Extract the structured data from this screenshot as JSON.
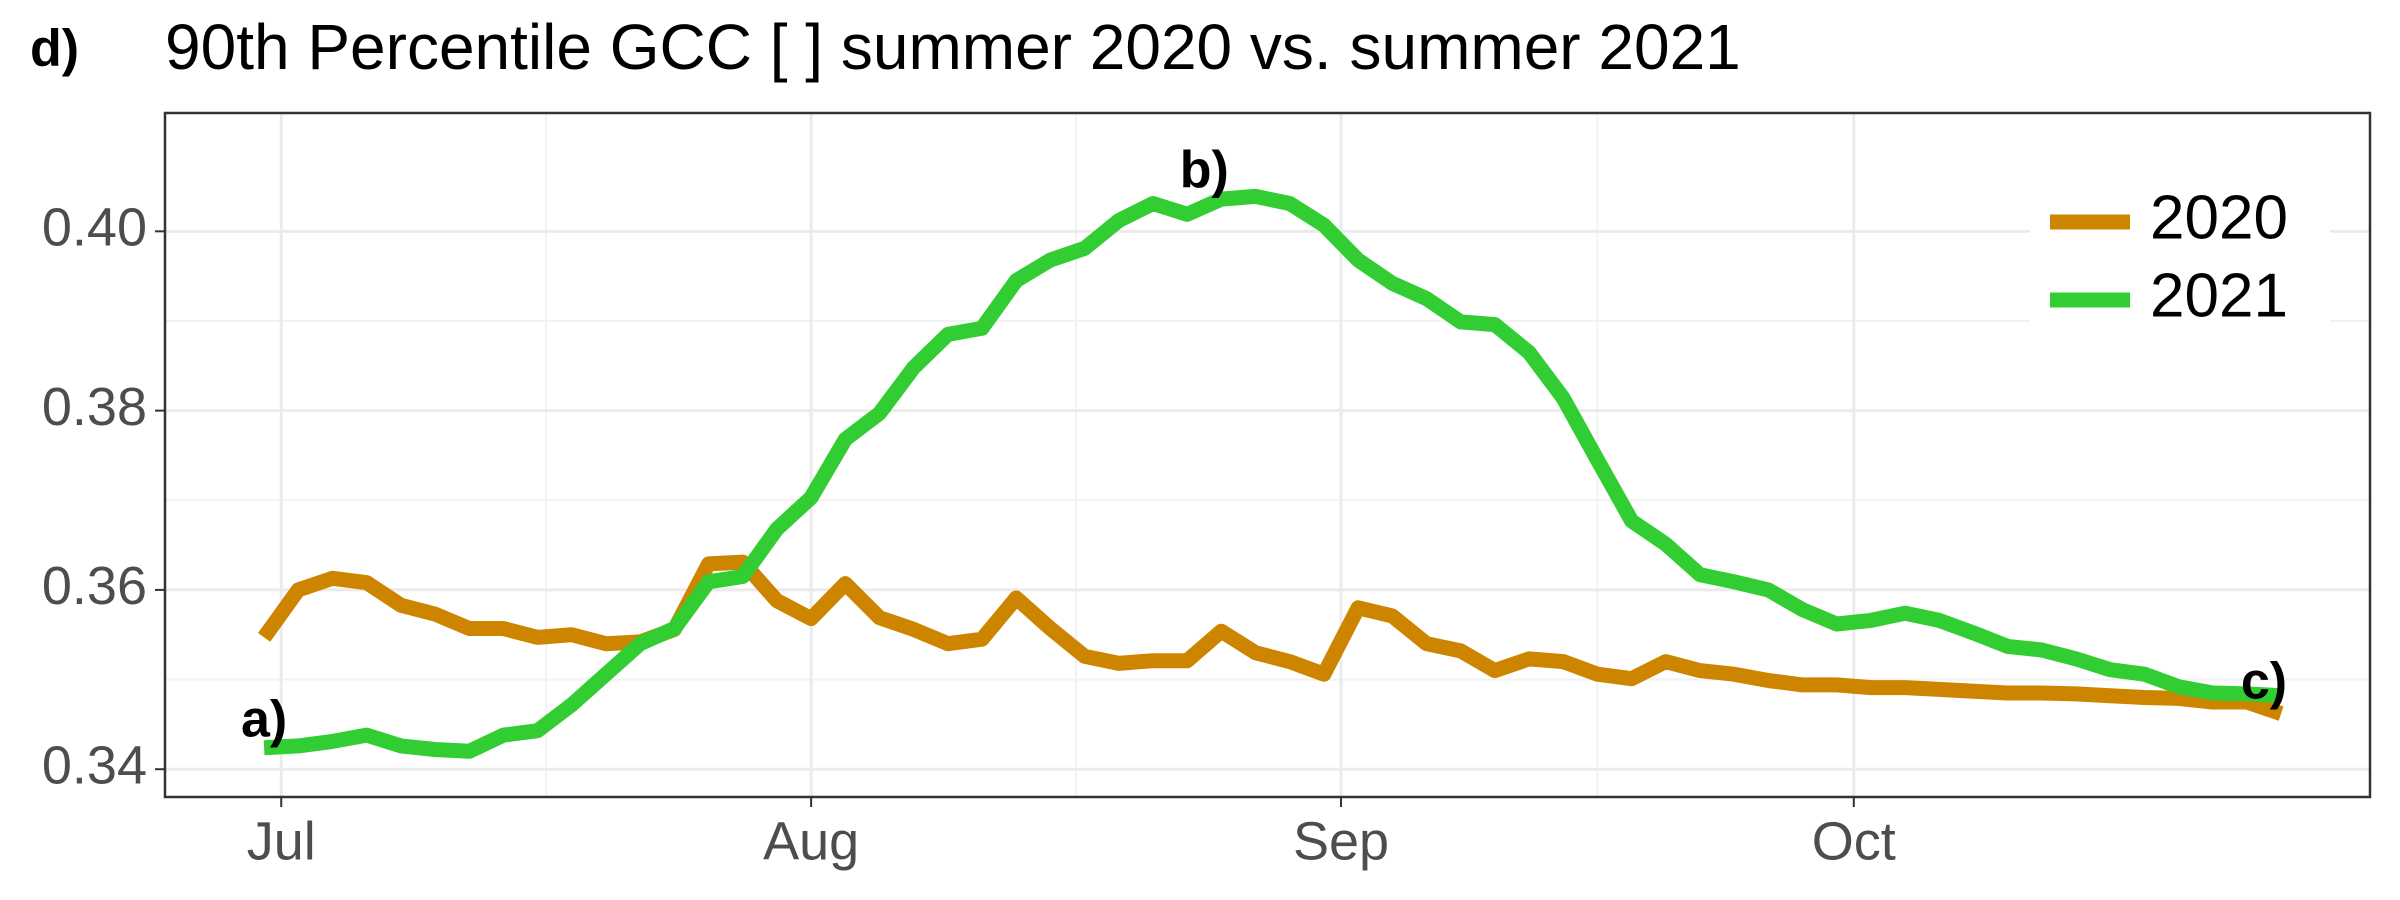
{
  "chart_data": {
    "type": "line",
    "tag": "d)",
    "title": "90th Percentile GCC [ ] summer 2020 vs. summer 2021",
    "x": [
      -1,
      1,
      3,
      5,
      7,
      9,
      11,
      13,
      15,
      17,
      19,
      21,
      23,
      25,
      27,
      29,
      31,
      33,
      35,
      37,
      39,
      41,
      43,
      45,
      47,
      49,
      51,
      53,
      55,
      57,
      59,
      61,
      63,
      65,
      67,
      69,
      71,
      73,
      75,
      77,
      79,
      81,
      83,
      85,
      87,
      89,
      91,
      93,
      95,
      97,
      99,
      101,
      103,
      105,
      107,
      109,
      111,
      113,
      115,
      117
    ],
    "series": [
      {
        "name": "2020",
        "color": "#cd8500",
        "values": [
          0.3547,
          0.36,
          0.3613,
          0.3608,
          0.3583,
          0.3573,
          0.3557,
          0.3557,
          0.3547,
          0.355,
          0.354,
          0.3542,
          0.3556,
          0.3629,
          0.3631,
          0.3588,
          0.3568,
          0.3607,
          0.3569,
          0.3556,
          0.354,
          0.3545,
          0.3591,
          0.3557,
          0.3526,
          0.3518,
          0.3521,
          0.3521,
          0.3554,
          0.353,
          0.352,
          0.3506,
          0.358,
          0.3571,
          0.354,
          0.3532,
          0.351,
          0.3523,
          0.352,
          0.3506,
          0.3501,
          0.352,
          0.351,
          0.3506,
          0.3499,
          0.3494,
          0.3494,
          0.3491,
          0.3491,
          0.3489,
          0.3487,
          0.3485,
          0.3485,
          0.3484,
          0.3482,
          0.348,
          0.3479,
          0.3475,
          0.3475,
          0.3462
        ]
      },
      {
        "name": "2021",
        "color": "#32cd32",
        "values": [
          0.3424,
          0.3426,
          0.3431,
          0.3438,
          0.3426,
          0.3422,
          0.342,
          0.3438,
          0.3443,
          0.3472,
          0.3506,
          0.354,
          0.3557,
          0.3609,
          0.3615,
          0.3668,
          0.3703,
          0.3768,
          0.3797,
          0.3848,
          0.3885,
          0.3892,
          0.3945,
          0.3968,
          0.3981,
          0.4012,
          0.4031,
          0.4019,
          0.4036,
          0.4039,
          0.4031,
          0.4007,
          0.3968,
          0.3942,
          0.3925,
          0.3899,
          0.3896,
          0.3865,
          0.3814,
          0.3745,
          0.3677,
          0.3651,
          0.3617,
          0.3609,
          0.36,
          0.3578,
          0.3562,
          0.3566,
          0.3574,
          0.3566,
          0.3552,
          0.3537,
          0.3533,
          0.3523,
          0.3511,
          0.3506,
          0.3492,
          0.3485,
          0.3484,
          0.3482
        ]
      }
    ],
    "xlim": [
      -6.8,
      122.2
    ],
    "xticks": [
      {
        "value": 0,
        "label": "Jul"
      },
      {
        "value": 31,
        "label": "Aug"
      },
      {
        "value": 62,
        "label": "Sep"
      },
      {
        "value": 92,
        "label": "Oct"
      }
    ],
    "ylim": [
      0.3369,
      0.4132
    ],
    "yticks": [
      {
        "value": 0.34,
        "label": "0.34"
      },
      {
        "value": 0.36,
        "label": "0.36"
      },
      {
        "value": 0.38,
        "label": "0.38"
      },
      {
        "value": 0.4,
        "label": "0.40"
      }
    ],
    "grid": true,
    "legend": "top-right",
    "annotations": [
      {
        "text": "a)",
        "x": -1,
        "y": 0.3452
      },
      {
        "text": "b)",
        "x": 54,
        "y": 0.4065
      },
      {
        "text": "c)",
        "x": 116,
        "y": 0.3494
      }
    ]
  }
}
